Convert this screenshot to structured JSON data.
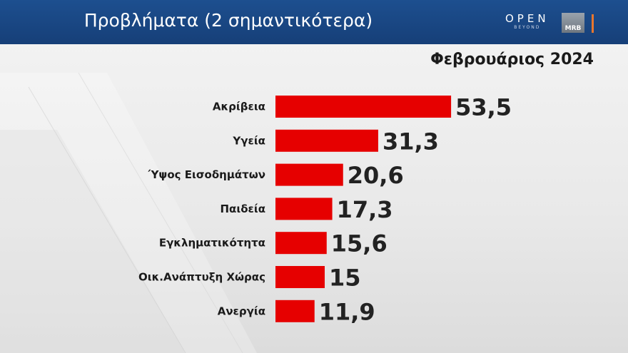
{
  "header": {
    "title": "Προβλήματα (2 σημαντικότερα)",
    "brand_main": "OPEN",
    "brand_sub": "BEYOND",
    "logo": "MRB"
  },
  "date_label": "Φεβρουάριος 2024",
  "colors": {
    "header_bg": "#1d4f8f",
    "bar": "#e60000",
    "logo_accent": "#e8772e"
  },
  "chart_data": {
    "type": "bar",
    "orientation": "horizontal",
    "title": "Προβλήματα (2 σημαντικότερα)",
    "subtitle": "Φεβρουάριος 2024",
    "categories": [
      "Ακρίβεια",
      "Υγεία",
      "Ύψος Εισοδημάτων",
      "Παιδεία",
      "Εγκληματικότητα",
      "Οικ.Ανάπτυξη Χώρας",
      "Ανεργία"
    ],
    "values": [
      53.5,
      31.3,
      20.6,
      17.3,
      15.6,
      15,
      11.9
    ],
    "value_labels": [
      "53,5",
      "31,3",
      "20,6",
      "17,3",
      "15,6",
      "15",
      "11,9"
    ],
    "xlim": [
      0,
      60
    ],
    "grid": false,
    "legend": "none"
  }
}
